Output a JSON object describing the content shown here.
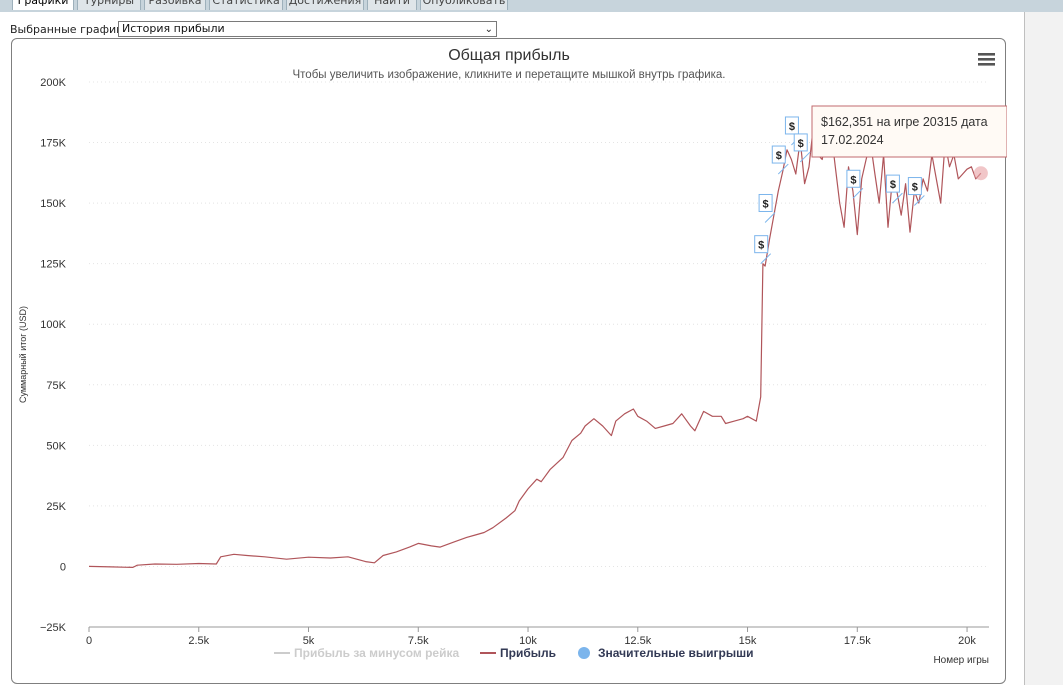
{
  "tabs": [
    {
      "label": "Графики",
      "active": true
    },
    {
      "label": "Турниры",
      "active": false
    },
    {
      "label": "Разбивка",
      "active": false
    },
    {
      "label": "Статистика",
      "active": false
    },
    {
      "label": "Достижения",
      "active": false
    },
    {
      "label": "Найти",
      "active": false
    },
    {
      "label": "Опубликовать",
      "active": false
    }
  ],
  "selector": {
    "label": "Выбранные графики:",
    "value": "История прибыли"
  },
  "menu_icon": "hamburger-menu-icon",
  "tooltip": {
    "line1": "$162,351 на игре 20315 дата",
    "line2": "17.02.2024"
  },
  "chart_data": {
    "type": "line",
    "title": "Общая прибыль",
    "subtitle": "Чтобы увеличить изображение, кликните и перетащите мышкой внутрь графика.",
    "xlabel": "Номер игры",
    "ylabel": "Суммарный итог (USD)",
    "xlim": [
      0,
      20500
    ],
    "ylim": [
      -25000,
      200000
    ],
    "x_ticks": [
      0,
      2500,
      5000,
      7500,
      10000,
      12500,
      15000,
      17500,
      20000
    ],
    "x_tick_labels": [
      "0",
      "2.5k",
      "5k",
      "7.5k",
      "10k",
      "12.5k",
      "15k",
      "17.5k",
      "20k"
    ],
    "y_ticks": [
      -25000,
      0,
      25000,
      50000,
      75000,
      100000,
      125000,
      150000,
      175000,
      200000
    ],
    "y_tick_labels": [
      "−25K",
      "0",
      "25K",
      "50K",
      "75K",
      "100K",
      "125K",
      "150K",
      "175K",
      "200K"
    ],
    "grid": true,
    "legend_position": "bottom",
    "legend": [
      {
        "name": "Прибыль за минусом рейка",
        "color": "#cccccc",
        "type": "line",
        "hidden": true
      },
      {
        "name": "Прибыль",
        "color": "#b0555a",
        "type": "line",
        "hidden": false
      },
      {
        "name": "Значительные выигрыши",
        "color": "#7cb5ec",
        "type": "marker",
        "hidden": false
      }
    ],
    "series": [
      {
        "name": "Прибыль",
        "color": "#b0555a",
        "x": [
          0,
          500,
          1000,
          1100,
          1500,
          2000,
          2500,
          2900,
          3000,
          3300,
          3600,
          4000,
          4500,
          5000,
          5500,
          5900,
          6300,
          6500,
          6700,
          7000,
          7300,
          7500,
          7800,
          8000,
          8300,
          8600,
          8800,
          9000,
          9200,
          9500,
          9700,
          9800,
          10000,
          10200,
          10300,
          10500,
          10800,
          11000,
          11200,
          11300,
          11500,
          11700,
          11900,
          12000,
          12200,
          12400,
          12500,
          12700,
          12900,
          13100,
          13300,
          13500,
          13700,
          13800,
          14000,
          14200,
          14400,
          14500,
          14700,
          14900,
          15000,
          15200,
          15300,
          15350,
          15400,
          15500,
          15600,
          15700,
          15800,
          15900,
          16000,
          16100,
          16200,
          16300,
          16400,
          16500,
          16600,
          16700,
          16800,
          16900,
          17000,
          17100,
          17200,
          17300,
          17400,
          17500,
          17600,
          17700,
          17800,
          17900,
          18000,
          18100,
          18200,
          18300,
          18400,
          18500,
          18600,
          18700,
          18800,
          18900,
          19000,
          19100,
          19200,
          19300,
          19400,
          19500,
          19600,
          19700,
          19800,
          19900,
          20000,
          20100,
          20200,
          20315
        ],
        "values": [
          0,
          -200,
          -400,
          500,
          1000,
          900,
          1200,
          1000,
          4000,
          5000,
          4500,
          4000,
          3000,
          3800,
          3500,
          4000,
          2000,
          1500,
          4500,
          6000,
          8000,
          9500,
          8500,
          8000,
          10000,
          12000,
          13000,
          14000,
          16000,
          20000,
          23000,
          27000,
          32000,
          36000,
          35000,
          40000,
          45000,
          52000,
          55000,
          58000,
          61000,
          58000,
          54000,
          60000,
          63000,
          65000,
          62000,
          60000,
          57000,
          58000,
          59000,
          63000,
          58000,
          56000,
          64000,
          62000,
          62000,
          59000,
          60000,
          61000,
          62000,
          60000,
          70000,
          125000,
          124000,
          135000,
          145000,
          155000,
          163000,
          172000,
          168000,
          162000,
          176000,
          158000,
          165000,
          182000,
          170000,
          168000,
          178000,
          180000,
          165000,
          150000,
          140000,
          165000,
          155000,
          137000,
          160000,
          168000,
          175000,
          162000,
          150000,
          170000,
          140000,
          160000,
          155000,
          145000,
          158000,
          138000,
          155000,
          150000,
          160000,
          155000,
          170000,
          160000,
          150000,
          175000,
          165000,
          170000,
          160000,
          162000,
          164000,
          165000,
          160000,
          162351
        ]
      }
    ],
    "markers": {
      "name": "Значительные выигрыши",
      "symbol": "$",
      "x": [
        15300,
        15400,
        15700,
        16000,
        16200,
        17400,
        18300,
        18800,
        19600
      ],
      "y": [
        125000,
        142000,
        162000,
        174000,
        167000,
        152000,
        150000,
        149000,
        173000
      ]
    }
  }
}
